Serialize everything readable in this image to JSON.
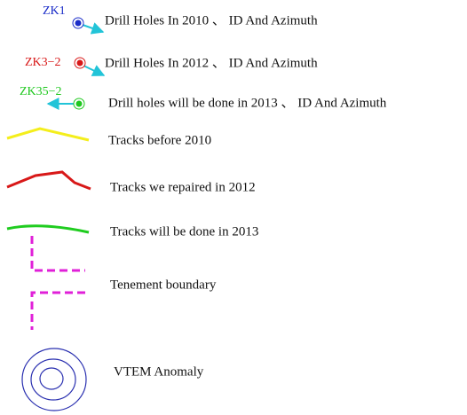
{
  "legend": {
    "items": [
      {
        "symbol_label": "ZK1",
        "label": "Drill Holes In 2010 、 ID And Azimuth"
      },
      {
        "symbol_label": "ZK3−2",
        "label": "Drill Holes In 2012 、 ID And Azimuth"
      },
      {
        "symbol_label": "ZK35−2",
        "label": "Drill holes will be done in 2013 、 ID And Azimuth"
      },
      {
        "label": "Tracks before 2010"
      },
      {
        "label": "Tracks we repaired in 2012"
      },
      {
        "label": "Tracks will be done in 2013"
      },
      {
        "label": "Tenement boundary"
      },
      {
        "label": "VTEM Anomaly"
      }
    ]
  }
}
